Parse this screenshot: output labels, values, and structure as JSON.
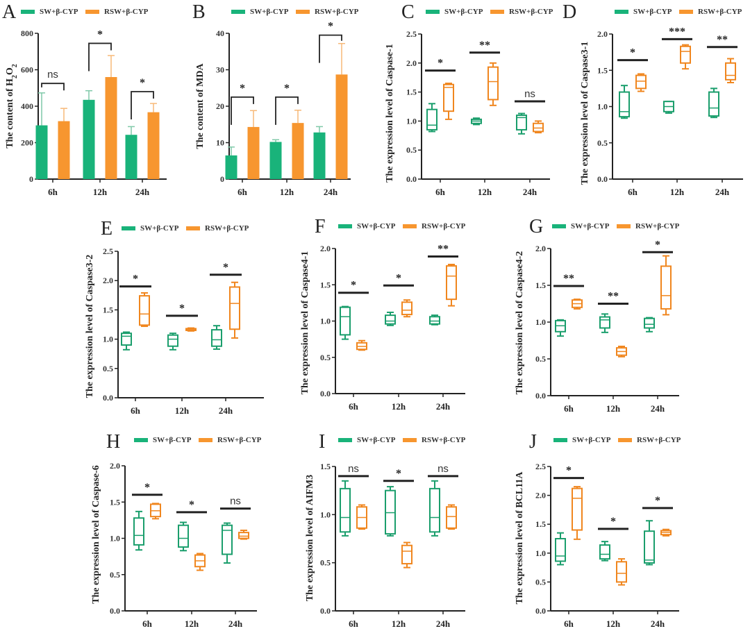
{
  "colors": {
    "sw": "#19b37a",
    "rsw": "#f7962f",
    "sw_line": "#1a9e6c",
    "rsw_line": "#f0861e",
    "axis": "#222222"
  },
  "legend": {
    "series": [
      "SW+β-CYP",
      "RSW+β-CYP"
    ]
  },
  "chart_data": [
    {
      "panel": "A",
      "type": "bar",
      "ylabel": "The content of H2O2",
      "ylabel_sub": {
        "base": "The content of H",
        "sub1": "2",
        "mid": "O",
        "sub2": "2"
      },
      "categories": [
        "6h",
        "12h",
        "24h"
      ],
      "ylim": [
        0,
        800
      ],
      "yticks": [
        0,
        200,
        400,
        600,
        800
      ],
      "ytick_labels": [
        "0",
        "200",
        "400",
        "600",
        "800"
      ],
      "series": [
        {
          "name": "SW+β-CYP",
          "values": [
            295,
            435,
            243
          ],
          "errors": [
            178,
            50,
            45
          ]
        },
        {
          "name": "RSW+β-CYP",
          "values": [
            318,
            560,
            367
          ],
          "errors": [
            70,
            118,
            48
          ]
        }
      ],
      "significance": [
        {
          "category": "6h",
          "label": "ns",
          "style": "bracket",
          "y": 525
        },
        {
          "category": "12h",
          "label": "*",
          "style": "bracket",
          "y": 745
        },
        {
          "category": "24h",
          "label": "*",
          "style": "bracket",
          "y": 480
        }
      ]
    },
    {
      "panel": "B",
      "type": "bar",
      "ylabel": "The content of MDA",
      "categories": [
        "6h",
        "12h",
        "24h"
      ],
      "ylim": [
        0,
        40
      ],
      "yticks": [
        0,
        10,
        20,
        30,
        40
      ],
      "ytick_labels": [
        "0",
        "10",
        "20",
        "30",
        "40"
      ],
      "series": [
        {
          "name": "SW+β-CYP",
          "values": [
            6.5,
            10.2,
            12.8
          ],
          "errors": [
            2.3,
            0.6,
            1.6
          ]
        },
        {
          "name": "RSW+β-CYP",
          "values": [
            14.3,
            15.4,
            28.7
          ],
          "errors": [
            4.5,
            3.5,
            8.5
          ]
        }
      ],
      "significance": [
        {
          "category": "6h",
          "label": "*",
          "style": "bracket",
          "y": 22.5
        },
        {
          "category": "12h",
          "label": "*",
          "style": "bracket",
          "y": 22.5
        },
        {
          "category": "24h",
          "label": "*",
          "style": "bracket",
          "y": 39.5
        }
      ]
    },
    {
      "panel": "C",
      "type": "box",
      "ylabel": "The expression level of Caspase-1",
      "categories": [
        "6h",
        "12h",
        "24h"
      ],
      "ylim": [
        0,
        2.5
      ],
      "yticks": [
        0,
        0.5,
        1.0,
        1.5,
        2.0,
        2.5
      ],
      "ytick_labels": [
        "0.0",
        "0.5",
        "1.0",
        "1.5",
        "2.0",
        "2.5"
      ],
      "series": [
        {
          "name": "SW+β-CYP",
          "boxes": [
            {
              "min": 0.82,
              "q1": 0.85,
              "median": 0.93,
              "q3": 1.2,
              "max": 1.3
            },
            {
              "min": 0.94,
              "q1": 0.96,
              "median": 1.0,
              "q3": 1.03,
              "max": 1.05
            },
            {
              "min": 0.78,
              "q1": 0.85,
              "median": 1.06,
              "q3": 1.1,
              "max": 1.13
            }
          ]
        },
        {
          "name": "RSW+β-CYP",
          "boxes": [
            {
              "min": 1.03,
              "q1": 1.17,
              "median": 1.58,
              "q3": 1.63,
              "max": 1.65
            },
            {
              "min": 1.27,
              "q1": 1.37,
              "median": 1.68,
              "q3": 1.93,
              "max": 2.0
            },
            {
              "min": 0.8,
              "q1": 0.82,
              "median": 0.88,
              "q3": 0.96,
              "max": 1.0
            }
          ]
        }
      ],
      "significance": [
        {
          "category": "6h",
          "label": "*",
          "y": 1.87
        },
        {
          "category": "12h",
          "label": "**",
          "y": 2.18
        },
        {
          "category": "24h",
          "label": "ns",
          "y": 1.34
        }
      ]
    },
    {
      "panel": "D",
      "type": "box",
      "ylabel": "The expression level of Caspase3-1",
      "categories": [
        "6h",
        "12h",
        "24h"
      ],
      "ylim": [
        0,
        2.0
      ],
      "yticks": [
        0,
        0.5,
        1.0,
        1.5,
        2.0
      ],
      "ytick_labels": [
        "0.0",
        "0.5",
        "1.0",
        "1.5",
        "2.0"
      ],
      "series": [
        {
          "name": "SW+β-CYP",
          "boxes": [
            {
              "min": 0.84,
              "q1": 0.86,
              "median": 0.93,
              "q3": 1.2,
              "max": 1.29
            },
            {
              "min": 0.91,
              "q1": 0.93,
              "median": 1.0,
              "q3": 1.07,
              "max": 1.07
            },
            {
              "min": 0.85,
              "q1": 0.87,
              "median": 0.98,
              "q3": 1.2,
              "max": 1.25
            }
          ]
        },
        {
          "name": "RSW+β-CYP",
          "boxes": [
            {
              "min": 1.21,
              "q1": 1.25,
              "median": 1.35,
              "q3": 1.43,
              "max": 1.45
            },
            {
              "min": 1.52,
              "q1": 1.6,
              "median": 1.76,
              "q3": 1.83,
              "max": 1.85
            },
            {
              "min": 1.33,
              "q1": 1.37,
              "median": 1.43,
              "q3": 1.6,
              "max": 1.66
            }
          ]
        }
      ],
      "significance": [
        {
          "category": "6h",
          "label": "*",
          "y": 1.64
        },
        {
          "category": "12h",
          "label": "***",
          "y": 1.93
        },
        {
          "category": "24h",
          "label": "**",
          "y": 1.82
        }
      ]
    },
    {
      "panel": "E",
      "type": "box",
      "ylabel": "The expression level of Caspase3-2",
      "categories": [
        "6h",
        "12h",
        "24h"
      ],
      "ylim": [
        0,
        2.5
      ],
      "yticks": [
        0,
        0.5,
        1.0,
        1.5,
        2.0,
        2.5
      ],
      "ytick_labels": [
        "0.0",
        "0.5",
        "1.0",
        "1.5",
        "2.0",
        "2.5"
      ],
      "series": [
        {
          "name": "SW+β-CYP",
          "boxes": [
            {
              "min": 0.82,
              "q1": 0.9,
              "median": 1.05,
              "q3": 1.1,
              "max": 1.12
            },
            {
              "min": 0.82,
              "q1": 0.88,
              "median": 1.0,
              "q3": 1.07,
              "max": 1.1
            },
            {
              "min": 0.83,
              "q1": 0.88,
              "median": 0.99,
              "q3": 1.16,
              "max": 1.23
            }
          ]
        },
        {
          "name": "RSW+β-CYP",
          "boxes": [
            {
              "min": 1.22,
              "q1": 1.24,
              "median": 1.43,
              "q3": 1.74,
              "max": 1.79
            },
            {
              "min": 1.14,
              "q1": 1.15,
              "median": 1.16,
              "q3": 1.18,
              "max": 1.19
            },
            {
              "min": 1.02,
              "q1": 1.17,
              "median": 1.61,
              "q3": 1.89,
              "max": 1.97
            }
          ]
        }
      ],
      "significance": [
        {
          "category": "6h",
          "label": "*",
          "y": 1.9
        },
        {
          "category": "12h",
          "label": "*",
          "y": 1.4
        },
        {
          "category": "24h",
          "label": "*",
          "y": 2.1
        }
      ]
    },
    {
      "panel": "F",
      "type": "box",
      "ylabel": "The expression level of Caspase4-1",
      "categories": [
        "6h",
        "12h",
        "24h"
      ],
      "ylim": [
        0,
        2.0
      ],
      "yticks": [
        0,
        0.5,
        1.0,
        1.5,
        2.0
      ],
      "ytick_labels": [
        "0.0",
        "0.5",
        "1.0",
        "1.5",
        "2.0"
      ],
      "series": [
        {
          "name": "SW+β-CYP",
          "boxes": [
            {
              "min": 0.75,
              "q1": 0.81,
              "median": 1.06,
              "q3": 1.19,
              "max": 1.2
            },
            {
              "min": 0.94,
              "q1": 0.96,
              "median": 1.0,
              "q3": 1.08,
              "max": 1.12
            },
            {
              "min": 0.95,
              "q1": 0.96,
              "median": 1.0,
              "q3": 1.06,
              "max": 1.08
            }
          ]
        },
        {
          "name": "RSW+β-CYP",
          "boxes": [
            {
              "min": 0.6,
              "q1": 0.61,
              "median": 0.65,
              "q3": 0.7,
              "max": 0.73
            },
            {
              "min": 1.06,
              "q1": 1.09,
              "median": 1.15,
              "q3": 1.26,
              "max": 1.29
            },
            {
              "min": 1.21,
              "q1": 1.3,
              "median": 1.62,
              "q3": 1.76,
              "max": 1.78
            }
          ]
        }
      ],
      "significance": [
        {
          "category": "6h",
          "label": "*",
          "y": 1.39
        },
        {
          "category": "12h",
          "label": "*",
          "y": 1.49
        },
        {
          "category": "24h",
          "label": "**",
          "y": 1.89
        }
      ]
    },
    {
      "panel": "G",
      "type": "box",
      "ylabel": "The expression level of Caspase4-2",
      "categories": [
        "6h",
        "12h",
        "24h"
      ],
      "ylim": [
        0,
        2.0
      ],
      "yticks": [
        0,
        0.5,
        1.0,
        1.5,
        2.0
      ],
      "ytick_labels": [
        "0.0",
        "0.5",
        "1.0",
        "1.5",
        "2.0"
      ],
      "series": [
        {
          "name": "SW+β-CYP",
          "boxes": [
            {
              "min": 0.81,
              "q1": 0.87,
              "median": 0.95,
              "q3": 1.02,
              "max": 1.03
            },
            {
              "min": 0.86,
              "q1": 0.92,
              "median": 1.03,
              "q3": 1.07,
              "max": 1.11
            },
            {
              "min": 0.87,
              "q1": 0.92,
              "median": 0.97,
              "q3": 1.05,
              "max": 1.06
            }
          ]
        },
        {
          "name": "RSW+β-CYP",
          "boxes": [
            {
              "min": 1.18,
              "q1": 1.2,
              "median": 1.25,
              "q3": 1.3,
              "max": 1.31
            },
            {
              "min": 0.53,
              "q1": 0.55,
              "median": 0.6,
              "q3": 0.65,
              "max": 0.67
            },
            {
              "min": 1.1,
              "q1": 1.18,
              "median": 1.36,
              "q3": 1.76,
              "max": 1.9
            }
          ]
        }
      ],
      "significance": [
        {
          "category": "6h",
          "label": "**",
          "y": 1.49
        },
        {
          "category": "12h",
          "label": "**",
          "y": 1.25
        },
        {
          "category": "24h",
          "label": "*",
          "y": 1.95
        }
      ]
    },
    {
      "panel": "H",
      "type": "box",
      "ylabel": "The expression level of Caspase-6",
      "categories": [
        "6h",
        "12h",
        "24h"
      ],
      "ylim": [
        0,
        2.0
      ],
      "yticks": [
        0,
        0.5,
        1.0,
        1.5,
        2.0
      ],
      "ytick_labels": [
        "0.0",
        "0.5",
        "1.0",
        "1.5",
        "2.0"
      ],
      "series": [
        {
          "name": "SW+β-CYP",
          "boxes": [
            {
              "min": 0.84,
              "q1": 0.91,
              "median": 1.04,
              "q3": 1.28,
              "max": 1.37
            },
            {
              "min": 0.83,
              "q1": 0.88,
              "median": 1.0,
              "q3": 1.18,
              "max": 1.22
            },
            {
              "min": 0.66,
              "q1": 0.78,
              "median": 1.11,
              "q3": 1.18,
              "max": 1.21
            }
          ]
        },
        {
          "name": "RSW+β-CYP",
          "boxes": [
            {
              "min": 1.27,
              "q1": 1.3,
              "median": 1.38,
              "q3": 1.47,
              "max": 1.48
            },
            {
              "min": 0.56,
              "q1": 0.61,
              "median": 0.69,
              "q3": 0.77,
              "max": 0.79
            },
            {
              "min": 0.99,
              "q1": 1.0,
              "median": 1.03,
              "q3": 1.08,
              "max": 1.11
            }
          ]
        }
      ],
      "significance": [
        {
          "category": "6h",
          "label": "*",
          "y": 1.6
        },
        {
          "category": "12h",
          "label": "*",
          "y": 1.36
        },
        {
          "category": "24h",
          "label": "ns",
          "y": 1.41
        }
      ]
    },
    {
      "panel": "I",
      "type": "box",
      "ylabel": "The expression level of AIFM3",
      "categories": [
        "6h",
        "12h",
        "24h"
      ],
      "ylim": [
        0,
        1.5
      ],
      "yticks": [
        0,
        0.5,
        1.0,
        1.5
      ],
      "ytick_labels": [
        "0.0",
        "0.5",
        "1.0",
        "1.5"
      ],
      "series": [
        {
          "name": "SW+β-CYP",
          "boxes": [
            {
              "min": 0.78,
              "q1": 0.82,
              "median": 0.97,
              "q3": 1.27,
              "max": 1.35
            },
            {
              "min": 0.78,
              "q1": 0.8,
              "median": 1.02,
              "q3": 1.25,
              "max": 1.29
            },
            {
              "min": 0.78,
              "q1": 0.82,
              "median": 0.97,
              "q3": 1.27,
              "max": 1.35
            }
          ]
        },
        {
          "name": "RSW+β-CYP",
          "boxes": [
            {
              "min": 0.85,
              "q1": 0.86,
              "median": 0.97,
              "q3": 1.08,
              "max": 1.1
            },
            {
              "min": 0.45,
              "q1": 0.49,
              "median": 0.62,
              "q3": 0.68,
              "max": 0.71
            },
            {
              "min": 0.85,
              "q1": 0.86,
              "median": 0.98,
              "q3": 1.08,
              "max": 1.1
            }
          ]
        }
      ],
      "significance": [
        {
          "category": "6h",
          "label": "ns",
          "y": 1.4
        },
        {
          "category": "12h",
          "label": "*",
          "y": 1.35
        },
        {
          "category": "24h",
          "label": "ns",
          "y": 1.4
        }
      ]
    },
    {
      "panel": "J",
      "type": "box",
      "ylabel": "The expression level of BCL11A",
      "categories": [
        "6h",
        "12h",
        "24h"
      ],
      "ylim": [
        0,
        2.5
      ],
      "yticks": [
        0,
        0.5,
        1.0,
        1.5,
        2.0,
        2.5
      ],
      "ytick_labels": [
        "0.0",
        "0.5",
        "1.0",
        "1.5",
        "2.0",
        "2.5"
      ],
      "series": [
        {
          "name": "SW+β-CYP",
          "boxes": [
            {
              "min": 0.8,
              "q1": 0.86,
              "median": 0.95,
              "q3": 1.25,
              "max": 1.35
            },
            {
              "min": 0.87,
              "q1": 0.9,
              "median": 0.98,
              "q3": 1.14,
              "max": 1.2
            },
            {
              "min": 0.8,
              "q1": 0.83,
              "median": 0.88,
              "q3": 1.38,
              "max": 1.56
            }
          ]
        },
        {
          "name": "RSW+β-CYP",
          "boxes": [
            {
              "min": 1.24,
              "q1": 1.4,
              "median": 1.95,
              "q3": 2.12,
              "max": 2.15
            },
            {
              "min": 0.45,
              "q1": 0.5,
              "median": 0.65,
              "q3": 0.85,
              "max": 0.9
            },
            {
              "min": 1.3,
              "q1": 1.32,
              "median": 1.36,
              "q3": 1.39,
              "max": 1.41
            }
          ]
        }
      ],
      "significance": [
        {
          "category": "6h",
          "label": "*",
          "y": 2.3
        },
        {
          "category": "12h",
          "label": "*",
          "y": 1.42
        },
        {
          "category": "24h",
          "label": "*",
          "y": 1.78
        }
      ]
    }
  ]
}
